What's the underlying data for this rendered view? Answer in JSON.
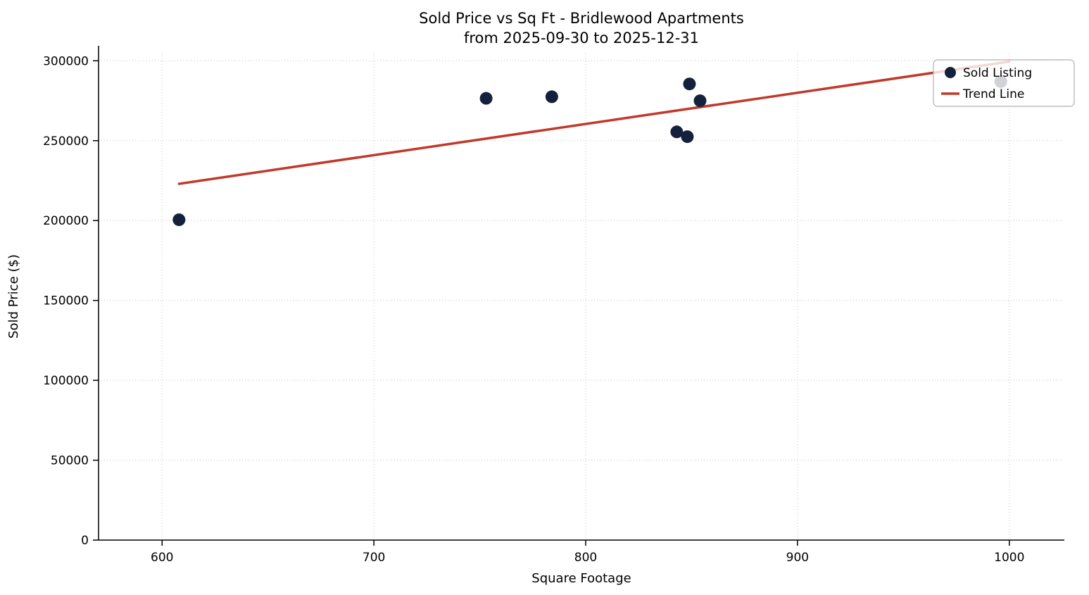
{
  "chart_data": {
    "type": "scatter",
    "title": "Sold Price vs Sq Ft - Bridlewood Apartments",
    "subtitle": "from 2025-09-30 to 2025-12-31",
    "xlabel": "Square Footage",
    "ylabel": "Sold Price ($)",
    "xlim": [
      570,
      1026
    ],
    "ylim": [
      0,
      305000
    ],
    "xticks": [
      600,
      700,
      800,
      900,
      1000
    ],
    "yticks": [
      0,
      50000,
      100000,
      150000,
      200000,
      250000,
      300000
    ],
    "grid": true,
    "colors": {
      "point": "#14213d",
      "trend": "#c0392b",
      "grid": "#c8c8c8",
      "spine": "#000000",
      "legend_border": "#b0b0b0"
    },
    "legend": {
      "position": "upper right",
      "entries": [
        {
          "label": "Sold Listing",
          "type": "point",
          "color": "#14213d"
        },
        {
          "label": "Trend Line",
          "type": "line",
          "color": "#c0392b"
        }
      ]
    },
    "series": [
      {
        "name": "Sold Listing",
        "type": "scatter",
        "color": "#14213d",
        "points": [
          [
            608,
            200500
          ],
          [
            753,
            276500
          ],
          [
            784,
            277500
          ],
          [
            843,
            255500
          ],
          [
            848,
            252500
          ],
          [
            849,
            285500
          ],
          [
            854,
            275000
          ],
          [
            996,
            287000
          ]
        ]
      },
      {
        "name": "Trend Line",
        "type": "line",
        "color": "#c0392b",
        "points": [
          [
            608,
            223000
          ],
          [
            1000,
            299500
          ]
        ]
      }
    ]
  }
}
